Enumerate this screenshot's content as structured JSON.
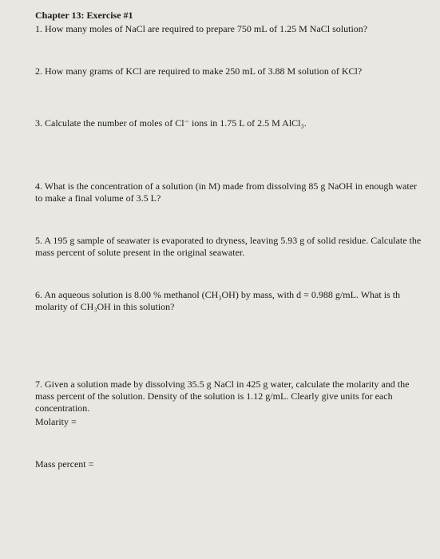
{
  "header": {
    "title": "Chapter 13:  Exercise #1"
  },
  "questions": {
    "q1": "1. How many moles of NaCl are required to prepare 750 mL of 1.25 M NaCl solution?",
    "q2": "2. How many grams of KCl are required to make 250 mL of 3.88 M solution of KCl?",
    "q3": "3. Calculate the number of moles of Cl⁻ ions in 1.75 L of 2.5 M AlCl₃.",
    "q4": "4. What is the concentration of a solution (in M) made from dissolving 85 g NaOH in enough water to make a final volume of 3.5 L?",
    "q5": "5. A 195 g sample of seawater is evaporated to dryness, leaving 5.93 g of solid residue. Calculate the mass percent of solute present in the original seawater.",
    "q6": "6. An aqueous solution is 8.00 % methanol (CH₃OH) by mass, with d = 0.988 g/mL.  What is th molarity of CH₃OH in this solution?",
    "q7": {
      "main": "7. Given a solution made by dissolving 35.5 g NaCl in 425 g water, calculate the molarity and the mass percent of the solution.  Density of the solution is 1.12 g/mL. Clearly give units for each concentration.",
      "molarity": "Molarity =",
      "masspercent": "Mass percent ="
    }
  }
}
